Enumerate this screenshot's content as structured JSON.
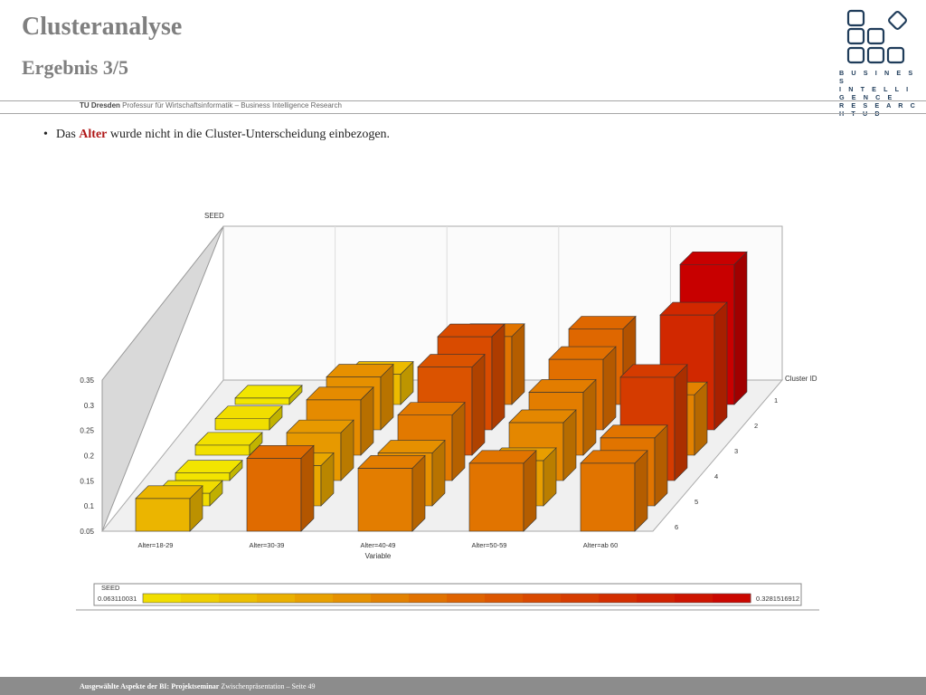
{
  "header": {
    "title": "Clusteranalyse",
    "subtitle": "Ergebnis 3/5",
    "affiliation_bold": "TU Dresden",
    "affiliation_rest": "Professur für Wirtschaftsinformatik – Business Intelligence Research",
    "logo_lines": [
      "B U S I N E S S",
      "I N T E L L I G E N C E",
      "R E S E A R C H  T U D"
    ]
  },
  "content": {
    "bullet_pre": "Das ",
    "bullet_highlight": "Alter",
    "bullet_post": " wurde nicht in die Cluster-Unterscheidung einbezogen."
  },
  "colors": {
    "highlight": "#b01818",
    "footer_bg": "#8c8c8c",
    "logo": "#1f3c5a"
  },
  "chart_data": {
    "type": "bar",
    "subtype": "3d-bar",
    "title": "",
    "z_axis_title": "SEED",
    "xlabel": "Variable",
    "depth_label": "Cluster ID",
    "categories": [
      "Alter=18-29",
      "Alter=30-39",
      "Alter=40-49",
      "Alter=50-59",
      "Alter=ab 60"
    ],
    "clusters": [
      "1",
      "2",
      "3",
      "4",
      "5",
      "6"
    ],
    "yticks": [
      "0.35",
      "0.3",
      "0.25",
      "0.2",
      "0.15",
      "0.1",
      "0.05"
    ],
    "ylim": [
      0.05,
      0.35
    ],
    "series": [
      {
        "name": "1",
        "values": [
          0.063,
          0.11,
          0.185,
          0.2,
          0.328
        ]
      },
      {
        "name": "2",
        "values": [
          0.072,
          0.155,
          0.235,
          0.19,
          0.278
        ]
      },
      {
        "name": "3",
        "values": [
          0.07,
          0.16,
          0.225,
          0.175,
          0.17
        ]
      },
      {
        "name": "4",
        "values": [
          0.065,
          0.145,
          0.18,
          0.165,
          0.255
        ]
      },
      {
        "name": "5",
        "values": [
          0.075,
          0.13,
          0.155,
          0.14,
          0.185
        ]
      },
      {
        "name": "6",
        "values": [
          0.115,
          0.195,
          0.175,
          0.185,
          0.185
        ]
      }
    ],
    "legend": {
      "title": "SEED",
      "min_label": "0.063110031",
      "max_label": "0.3281516912",
      "min_color": "#f2e600",
      "mid_color": "#e06a00",
      "max_color": "#c80000"
    }
  },
  "footer": {
    "bold": "Ausgewählte Aspekte der BI: Projektseminar",
    "rest": " Zwischenpräsentation – Seite 49"
  }
}
